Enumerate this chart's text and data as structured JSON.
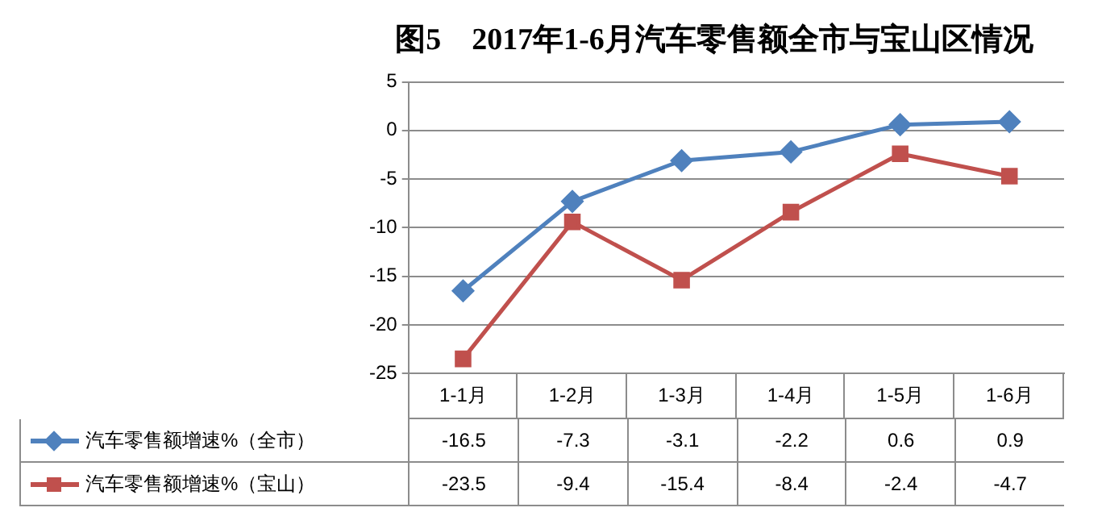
{
  "chart_data": {
    "type": "line",
    "title": "图5　2017年1-6月汽车零售额全市与宝山区情况",
    "categories": [
      "1-1月",
      "1-2月",
      "1-3月",
      "1-4月",
      "1-5月",
      "1-6月"
    ],
    "series": [
      {
        "name": "汽车零售额增速%（全市）",
        "color": "#4f81bd",
        "marker": "diamond",
        "values": [
          -16.5,
          -7.3,
          -3.1,
          -2.2,
          0.6,
          0.9
        ]
      },
      {
        "name": "汽车零售额增速%（宝山）",
        "color": "#c0504d",
        "marker": "square",
        "values": [
          -23.5,
          -9.4,
          -15.4,
          -8.4,
          -2.4,
          -4.7
        ]
      }
    ],
    "ylim": [
      -25,
      5
    ],
    "yticks": [
      -25,
      -20,
      -15,
      -10,
      -5,
      0,
      5
    ],
    "grid": "y",
    "legend": "bottom",
    "data_labels": true
  }
}
